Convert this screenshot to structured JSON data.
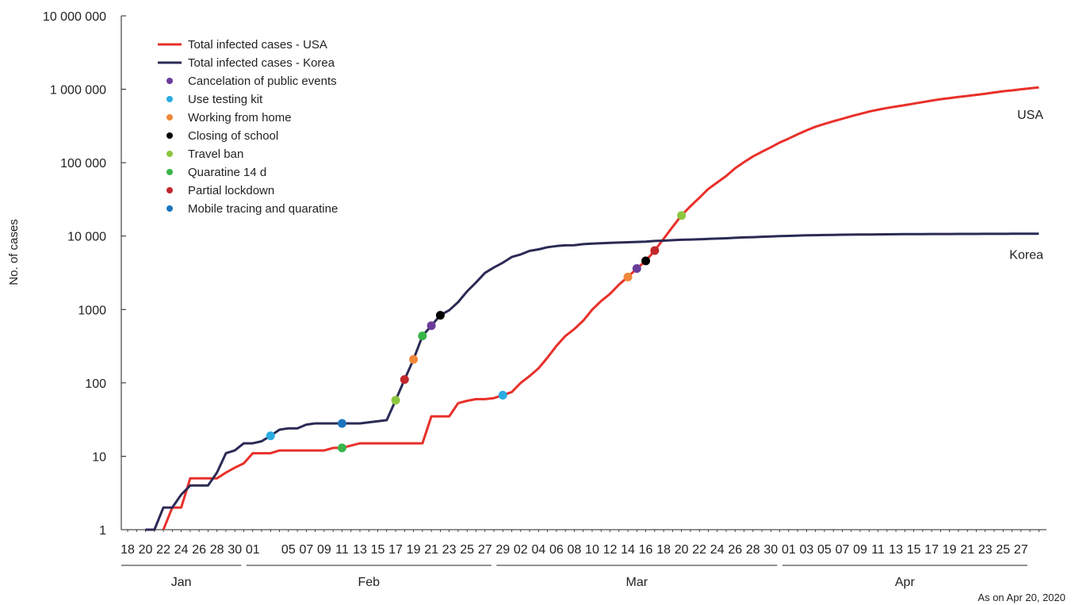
{
  "chart_data": {
    "type": "line",
    "ylabel": "No. of cases",
    "yscale": "log",
    "ylim": [
      1,
      10000000
    ],
    "y_ticks": [
      {
        "value": 1,
        "label": "1"
      },
      {
        "value": 10,
        "label": "10"
      },
      {
        "value": 100,
        "label": "100"
      },
      {
        "value": 1000,
        "label": "1000"
      },
      {
        "value": 10000,
        "label": "10 000"
      },
      {
        "value": 100000,
        "label": "100 000"
      },
      {
        "value": 1000000,
        "label": "1 000 000"
      },
      {
        "value": 10000000,
        "label": "10 000 000"
      }
    ],
    "x_ticks": [
      "18",
      "20",
      "22",
      "24",
      "26",
      "28",
      "30",
      "01",
      "05",
      "07",
      "09",
      "11",
      "13",
      "15",
      "17",
      "19",
      "21",
      "23",
      "25",
      "27",
      "29",
      "02",
      "04",
      "06",
      "08",
      "10",
      "12",
      "14",
      "16",
      "18",
      "20",
      "22",
      "24",
      "26",
      "28",
      "30",
      "01",
      "03",
      "05",
      "07",
      "09",
      "11",
      "13",
      "15",
      "17",
      "19",
      "21",
      "23",
      "25",
      "27"
    ],
    "x_ticks_index": [
      0,
      2,
      4,
      6,
      8,
      10,
      12,
      14,
      18,
      20,
      22,
      24,
      26,
      28,
      30,
      32,
      34,
      36,
      38,
      40,
      42,
      44,
      46,
      48,
      50,
      52,
      54,
      56,
      58,
      60,
      62,
      64,
      66,
      68,
      70,
      72,
      74,
      76,
      78,
      80,
      82,
      84,
      86,
      88,
      90,
      92,
      94,
      96,
      98,
      100
    ],
    "month_groups": [
      {
        "label": "Jan",
        "start": 0,
        "end": 12
      },
      {
        "label": "Feb",
        "start": 14,
        "end": 40
      },
      {
        "label": "Mar",
        "start": 42,
        "end": 72
      },
      {
        "label": "Apr",
        "start": 74,
        "end": 100
      }
    ],
    "x_max_index": 102,
    "series": [
      {
        "name": "Total infected cases - USA",
        "color": "#e8302a",
        "end_label": "USA",
        "points": [
          [
            4,
            1
          ],
          [
            5,
            2
          ],
          [
            6,
            2
          ],
          [
            7,
            5
          ],
          [
            8,
            5
          ],
          [
            9,
            5
          ],
          [
            10,
            5
          ],
          [
            11,
            6
          ],
          [
            12,
            7
          ],
          [
            13,
            8
          ],
          [
            14,
            11
          ],
          [
            15,
            11
          ],
          [
            16,
            11
          ],
          [
            17,
            12
          ],
          [
            18,
            12
          ],
          [
            19,
            12
          ],
          [
            20,
            12
          ],
          [
            21,
            12
          ],
          [
            22,
            12
          ],
          [
            23,
            13
          ],
          [
            24,
            13
          ],
          [
            25,
            14
          ],
          [
            26,
            15
          ],
          [
            27,
            15
          ],
          [
            28,
            15
          ],
          [
            29,
            15
          ],
          [
            30,
            15
          ],
          [
            31,
            15
          ],
          [
            32,
            15
          ],
          [
            33,
            15
          ],
          [
            34,
            35
          ],
          [
            35,
            35
          ],
          [
            36,
            35
          ],
          [
            37,
            53
          ],
          [
            38,
            57
          ],
          [
            39,
            60
          ],
          [
            40,
            60
          ],
          [
            41,
            62
          ],
          [
            42,
            68
          ],
          [
            43,
            75
          ],
          [
            44,
            100
          ],
          [
            45,
            124
          ],
          [
            46,
            158
          ],
          [
            47,
            221
          ],
          [
            48,
            319
          ],
          [
            49,
            435
          ],
          [
            50,
            541
          ],
          [
            51,
            704
          ],
          [
            52,
            994
          ],
          [
            53,
            1301
          ],
          [
            54,
            1630
          ],
          [
            55,
            2183
          ],
          [
            56,
            2770
          ],
          [
            57,
            3613
          ],
          [
            58,
            4596
          ],
          [
            59,
            6344
          ],
          [
            60,
            9197
          ],
          [
            61,
            13327
          ],
          [
            62,
            19100
          ],
          [
            63,
            25493
          ],
          [
            64,
            33276
          ],
          [
            65,
            43847
          ],
          [
            66,
            53740
          ],
          [
            67,
            65778
          ],
          [
            68,
            83836
          ],
          [
            69,
            101657
          ],
          [
            70,
            121478
          ],
          [
            71,
            140886
          ],
          [
            72,
            161807
          ],
          [
            73,
            188172
          ],
          [
            74,
            213372
          ],
          [
            75,
            243453
          ],
          [
            76,
            275586
          ],
          [
            77,
            308850
          ],
          [
            78,
            337072
          ],
          [
            79,
            366667
          ],
          [
            80,
            396223
          ],
          [
            81,
            429052
          ],
          [
            82,
            461437
          ],
          [
            83,
            496535
          ],
          [
            84,
            526396
          ],
          [
            85,
            555313
          ],
          [
            86,
            580619
          ],
          [
            87,
            607670
          ],
          [
            88,
            636350
          ],
          [
            89,
            667801
          ],
          [
            90,
            699706
          ],
          [
            91,
            732197
          ],
          [
            92,
            759086
          ],
          [
            93,
            784326
          ],
          [
            94,
            811865
          ],
          [
            95,
            840351
          ],
          [
            96,
            869170
          ],
          [
            97,
            905358
          ],
          [
            98,
            938154
          ],
          [
            99,
            965785
          ],
          [
            100,
            1000000
          ],
          [
            101,
            1030000
          ],
          [
            102,
            1060000
          ]
        ]
      },
      {
        "name": "Total infected cases - Korea",
        "color": "#2b2a55",
        "end_label": "Korea",
        "points": [
          [
            2,
            1
          ],
          [
            3,
            1
          ],
          [
            4,
            2
          ],
          [
            5,
            2
          ],
          [
            6,
            3
          ],
          [
            7,
            4
          ],
          [
            8,
            4
          ],
          [
            9,
            4
          ],
          [
            10,
            6
          ],
          [
            11,
            11
          ],
          [
            12,
            12
          ],
          [
            13,
            15
          ],
          [
            14,
            15
          ],
          [
            15,
            16
          ],
          [
            16,
            19
          ],
          [
            17,
            23
          ],
          [
            18,
            24
          ],
          [
            19,
            24
          ],
          [
            20,
            27
          ],
          [
            21,
            28
          ],
          [
            22,
            28
          ],
          [
            23,
            28
          ],
          [
            24,
            28
          ],
          [
            25,
            28
          ],
          [
            26,
            28
          ],
          [
            27,
            29
          ],
          [
            28,
            30
          ],
          [
            29,
            31
          ],
          [
            30,
            58
          ],
          [
            31,
            111
          ],
          [
            32,
            209
          ],
          [
            33,
            436
          ],
          [
            34,
            602
          ],
          [
            35,
            833
          ],
          [
            36,
            977
          ],
          [
            37,
            1261
          ],
          [
            38,
            1766
          ],
          [
            39,
            2337
          ],
          [
            40,
            3150
          ],
          [
            41,
            3736
          ],
          [
            42,
            4335
          ],
          [
            43,
            5186
          ],
          [
            44,
            5621
          ],
          [
            45,
            6284
          ],
          [
            46,
            6593
          ],
          [
            47,
            7041
          ],
          [
            48,
            7313
          ],
          [
            49,
            7478
          ],
          [
            50,
            7513
          ],
          [
            51,
            7755
          ],
          [
            52,
            7869
          ],
          [
            53,
            7979
          ],
          [
            54,
            8086
          ],
          [
            55,
            8162
          ],
          [
            56,
            8236
          ],
          [
            57,
            8320
          ],
          [
            58,
            8413
          ],
          [
            59,
            8565
          ],
          [
            60,
            8652
          ],
          [
            61,
            8799
          ],
          [
            62,
            8897
          ],
          [
            63,
            8961
          ],
          [
            64,
            9037
          ],
          [
            65,
            9137
          ],
          [
            66,
            9241
          ],
          [
            67,
            9332
          ],
          [
            68,
            9478
          ],
          [
            69,
            9583
          ],
          [
            70,
            9661
          ],
          [
            71,
            9786
          ],
          [
            72,
            9887
          ],
          [
            73,
            9976
          ],
          [
            74,
            10062
          ],
          [
            75,
            10156
          ],
          [
            76,
            10237
          ],
          [
            77,
            10284
          ],
          [
            78,
            10331
          ],
          [
            79,
            10384
          ],
          [
            80,
            10423
          ],
          [
            81,
            10450
          ],
          [
            82,
            10480
          ],
          [
            83,
            10512
          ],
          [
            84,
            10537
          ],
          [
            85,
            10564
          ],
          [
            86,
            10591
          ],
          [
            87,
            10613
          ],
          [
            88,
            10635
          ],
          [
            89,
            10653
          ],
          [
            90,
            10661
          ],
          [
            91,
            10674
          ],
          [
            92,
            10683
          ],
          [
            93,
            10694
          ],
          [
            94,
            10702
          ],
          [
            95,
            10708
          ],
          [
            96,
            10718
          ],
          [
            97,
            10728
          ],
          [
            98,
            10738
          ],
          [
            99,
            10752
          ],
          [
            100,
            10761
          ],
          [
            101,
            10768
          ],
          [
            102,
            10780
          ]
        ]
      }
    ],
    "event_markers": [
      {
        "name": "Cancelation of public events",
        "color": "#6a3d9a"
      },
      {
        "name": "Use testing kit",
        "color": "#29abe2"
      },
      {
        "name": "Working from home",
        "color": "#f0883a"
      },
      {
        "name": "Closing of school",
        "color": "#000000"
      },
      {
        "name": "Travel ban",
        "color": "#8cc63f"
      },
      {
        "name": "Quaratine 14 d",
        "color": "#39b54a"
      },
      {
        "name": "Partial lockdown",
        "color": "#c1272d"
      },
      {
        "name": "Mobile tracing and quaratine",
        "color": "#1c75bc"
      }
    ],
    "event_points": [
      {
        "event": "Use testing kit",
        "country": "Korea",
        "x": 16,
        "y": 19
      },
      {
        "event": "Mobile tracing and quaratine",
        "country": "Korea",
        "x": 24,
        "y": 28
      },
      {
        "event": "Travel ban",
        "country": "Korea",
        "x": 30,
        "y": 58
      },
      {
        "event": "Partial lockdown",
        "country": "Korea",
        "x": 31,
        "y": 111
      },
      {
        "event": "Working from home",
        "country": "Korea",
        "x": 32,
        "y": 209
      },
      {
        "event": "Quaratine 14 d",
        "country": "Korea",
        "x": 33,
        "y": 436
      },
      {
        "event": "Cancelation of public events",
        "country": "Korea",
        "x": 34,
        "y": 602
      },
      {
        "event": "Closing of school",
        "country": "Korea",
        "x": 35,
        "y": 833
      },
      {
        "event": "Quaratine 14 d",
        "country": "USA",
        "x": 24,
        "y": 13
      },
      {
        "event": "Use testing kit",
        "country": "USA",
        "x": 42,
        "y": 68
      },
      {
        "event": "Working from home",
        "country": "USA",
        "x": 56,
        "y": 2770
      },
      {
        "event": "Cancelation of public events",
        "country": "USA",
        "x": 57,
        "y": 3613
      },
      {
        "event": "Closing of school",
        "country": "USA",
        "x": 58,
        "y": 4596
      },
      {
        "event": "Partial lockdown",
        "country": "USA",
        "x": 59,
        "y": 6344
      },
      {
        "event": "Travel ban",
        "country": "USA",
        "x": 62,
        "y": 19100
      }
    ],
    "legend_position": "top-left",
    "grid": false,
    "note": "As on Apr 20, 2020"
  }
}
